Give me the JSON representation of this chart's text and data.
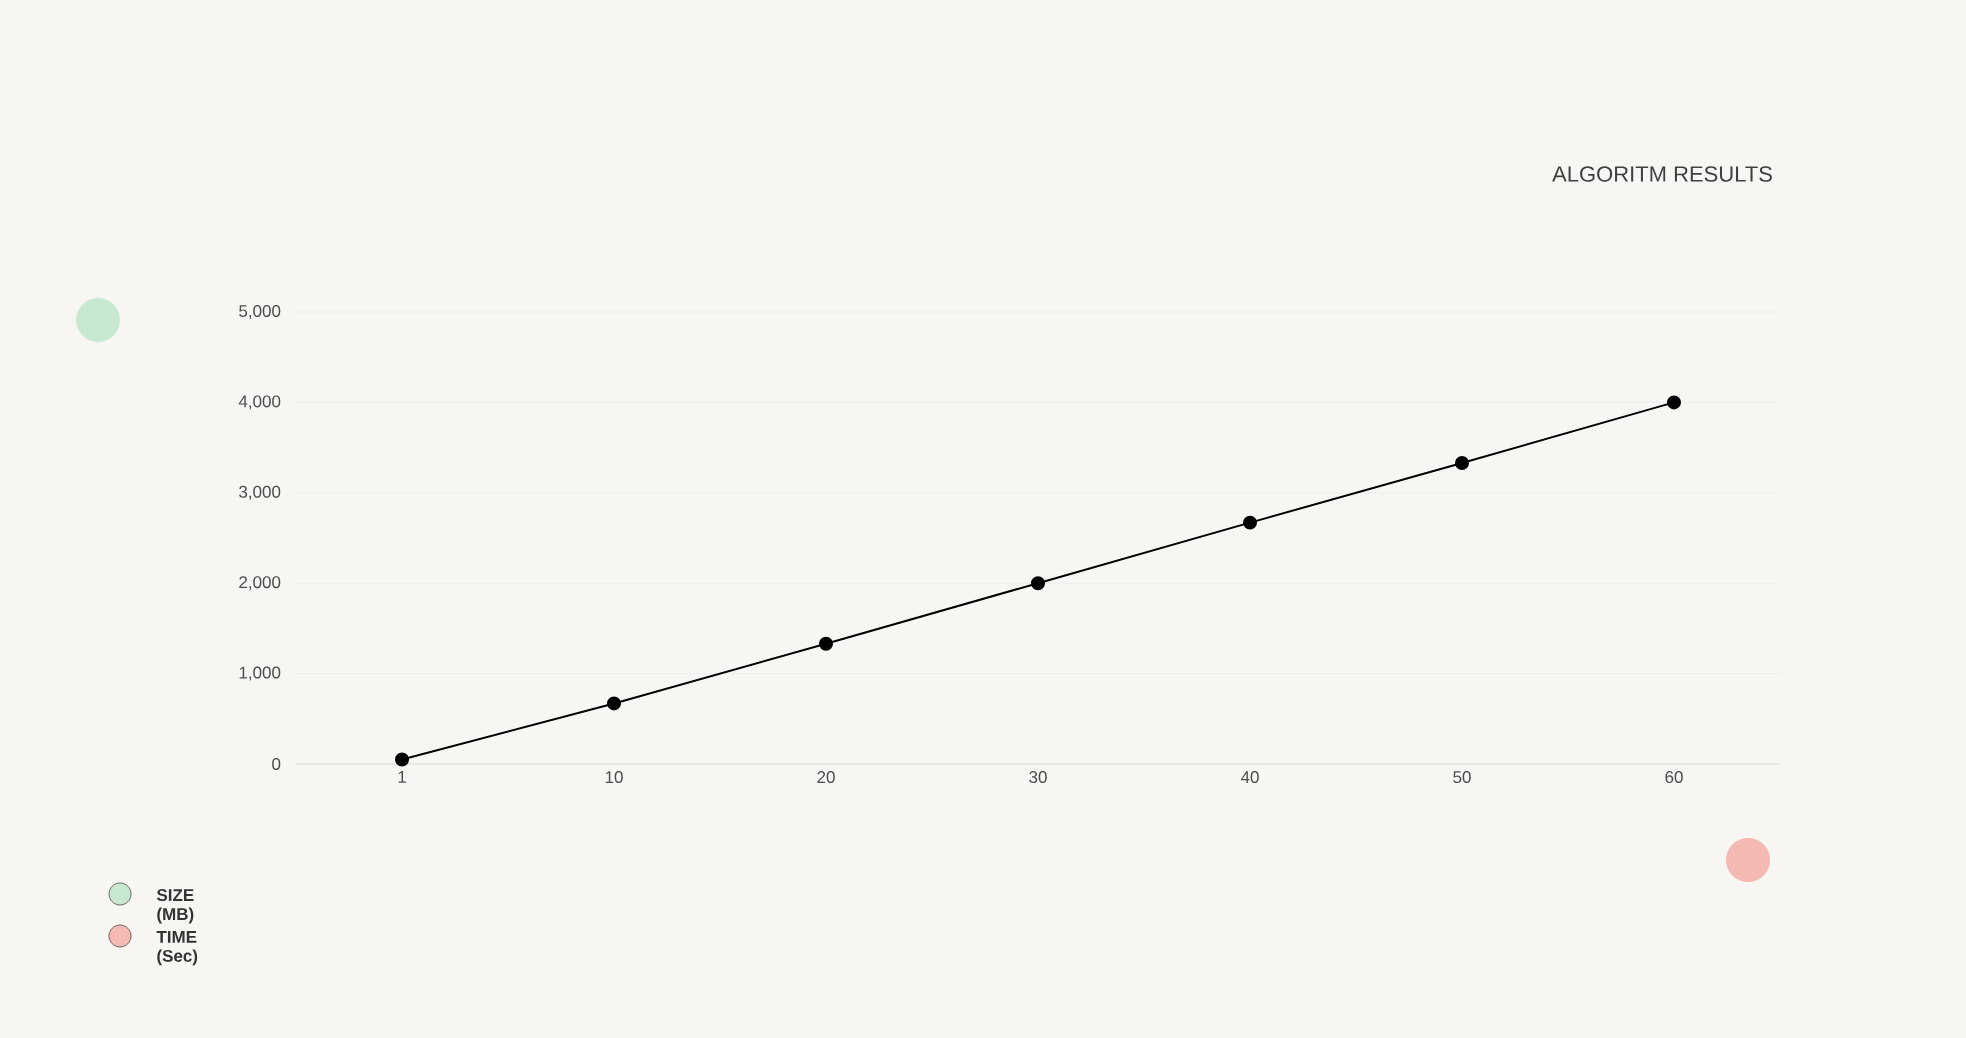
{
  "chart_data": {
    "type": "line",
    "title": "ALGORITM RESULTS",
    "annotations": [
      "SIZE (MB)",
      "TIME (Sec)"
    ],
    "categories": [
      "1",
      "10",
      "20",
      "30",
      "40",
      "50",
      "60"
    ],
    "series": [
      {
        "color": "#000000",
        "values": [
          50,
          670,
          1330,
          2000,
          2670,
          3330,
          4000
        ]
      }
    ],
    "ylim": [
      0,
      5000
    ],
    "yticks": [
      0,
      {
        "value": 1000,
        "label": "1,000"
      },
      {
        "value": 2000,
        "label": "2,000"
      },
      {
        "value": 3000,
        "label": "3,000"
      },
      {
        "value": 4000,
        "label": "4,000"
      },
      {
        "value": 5000,
        "label": "5,000"
      }
    ],
    "grid": "y",
    "marker": "circle",
    "line_style": "solid"
  }
}
